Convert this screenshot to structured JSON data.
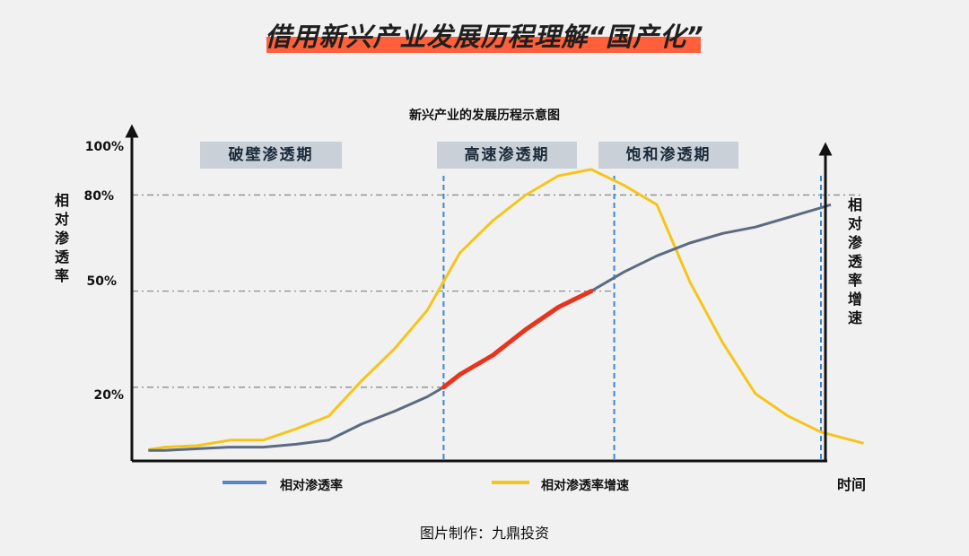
{
  "heading": "借用新兴产业发展历程理解“国产化”",
  "chart_data": {
    "type": "line",
    "title": "新兴产业的发展历程示意图",
    "ylabel": "相对渗透率",
    "y2label": "相对渗透率增速",
    "xlabel": "时间",
    "y_ticks": [
      "20%",
      "50%",
      "80%",
      "100%"
    ],
    "y_tick_values": [
      20,
      50,
      80,
      100
    ],
    "ylim": [
      -3,
      100
    ],
    "xlim": [
      0,
      21
    ],
    "phases": [
      {
        "label": "破壁渗透期",
        "x_start": 2.2,
        "x_end": 6.8
      },
      {
        "label": "高速渗透期",
        "x_start": 9.6,
        "x_end": 14.3
      },
      {
        "label": "饱和渗透期",
        "x_start": 14.9,
        "x_end": 19.5
      }
    ],
    "phase_boundaries_x": [
      9.5,
      14.7,
      21.0
    ],
    "reference_lines": [
      {
        "y": 20,
        "x_to": 9.5
      },
      {
        "y": 50,
        "x_to": 14.7
      },
      {
        "y": 80,
        "x_to": 22.3
      }
    ],
    "highlight_segment": {
      "x_from": 9.5,
      "x_to": 14.7,
      "color": "#e8341c"
    },
    "series": [
      {
        "name": "相对渗透率",
        "color": "#5b6b82",
        "legend_color": "#5b84c4",
        "points": [
          [
            0.5,
            0.3
          ],
          [
            1,
            0.3
          ],
          [
            2,
            0.8
          ],
          [
            3,
            1.3
          ],
          [
            4,
            1.3
          ],
          [
            5,
            2.2
          ],
          [
            6,
            3.5
          ],
          [
            7,
            8.5
          ],
          [
            8,
            12.5
          ],
          [
            9,
            17
          ],
          [
            9.5,
            20
          ],
          [
            10,
            24
          ],
          [
            11,
            30
          ],
          [
            12,
            38
          ],
          [
            13,
            45
          ],
          [
            14,
            50
          ],
          [
            15,
            56
          ],
          [
            16,
            61
          ],
          [
            17,
            65
          ],
          [
            18,
            68
          ],
          [
            19,
            70
          ],
          [
            20,
            73
          ],
          [
            21,
            76
          ],
          [
            21.3,
            77
          ]
        ]
      },
      {
        "name": "相对渗透率增速",
        "color": "#f5c51a",
        "legend_color": "#f5c51a",
        "points": [
          [
            0.5,
            0.5
          ],
          [
            1,
            1.3
          ],
          [
            2,
            1.8
          ],
          [
            3,
            3.5
          ],
          [
            4,
            3.5
          ],
          [
            5,
            7
          ],
          [
            6,
            11
          ],
          [
            7,
            22
          ],
          [
            8,
            32
          ],
          [
            9,
            44
          ],
          [
            10,
            62
          ],
          [
            11,
            72
          ],
          [
            12,
            80
          ],
          [
            13,
            86
          ],
          [
            14,
            88
          ],
          [
            15,
            83
          ],
          [
            16,
            77
          ],
          [
            17,
            53
          ],
          [
            18,
            34
          ],
          [
            19,
            18
          ],
          [
            20,
            11
          ],
          [
            21,
            6
          ],
          [
            22.3,
            2.5
          ]
        ]
      }
    ]
  },
  "credit": "图片制作：九鼎投资"
}
